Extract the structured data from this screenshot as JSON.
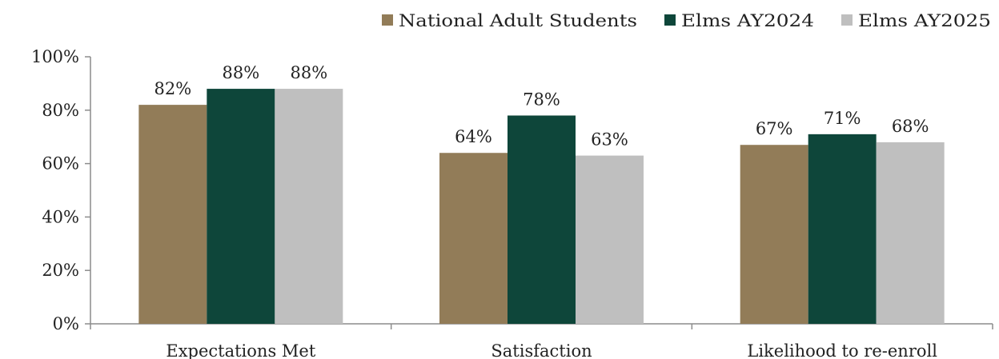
{
  "chart_data": {
    "type": "bar",
    "categories": [
      "Expectations Met",
      "Satisfaction",
      "Likelihood to re-enroll"
    ],
    "series": [
      {
        "name": "National Adult Students",
        "values": [
          82,
          64,
          67
        ],
        "color": "#927C58"
      },
      {
        "name": "Elms AY2024",
        "values": [
          88,
          78,
          71
        ],
        "color": "#0E463A"
      },
      {
        "name": "Elms AY2025",
        "values": [
          88,
          63,
          68
        ],
        "color": "#BFBFBF"
      }
    ],
    "data_labels": [
      [
        "82%",
        "64%",
        "67%"
      ],
      [
        "88%",
        "78%",
        "71%"
      ],
      [
        "88%",
        "63%",
        "68%"
      ]
    ],
    "yticks": [
      "0%",
      "20%",
      "40%",
      "60%",
      "80%",
      "100%"
    ],
    "ytick_values": [
      0,
      20,
      40,
      60,
      80,
      100
    ],
    "ylim": [
      0,
      100
    ],
    "legend_position": "top-right",
    "grid": false
  }
}
